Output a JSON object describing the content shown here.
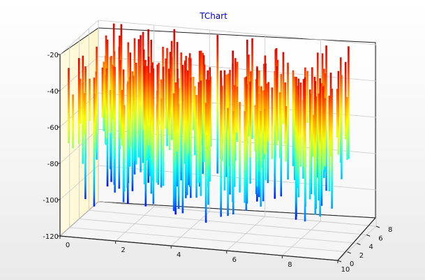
{
  "chart_data": {
    "type": "bar3d",
    "title": "TChart",
    "title_color": "#0000cc",
    "y_axis": {
      "min": -120,
      "max": -20,
      "ticks": [
        -20,
        -40,
        -60,
        -80,
        -100,
        -120
      ],
      "tick_labels": [
        "-20",
        "-40",
        "-60",
        "-80",
        "-100",
        "-120"
      ]
    },
    "x_axis": {
      "min": 0,
      "max": 10,
      "ticks": [
        0,
        2,
        4,
        6,
        8,
        10
      ],
      "tick_labels": [
        "0",
        "2",
        "4",
        "6",
        "8",
        "10"
      ]
    },
    "z_axis": {
      "min": 0,
      "max": 8,
      "ticks": [
        0,
        2,
        4,
        6,
        8
      ],
      "tick_labels": [
        "0",
        "2",
        "4",
        "6",
        "8"
      ]
    },
    "grid": true,
    "colormap": [
      "#0000a0",
      "#0000ff",
      "#00b4ff",
      "#00ffff",
      "#a0ff60",
      "#ffff00",
      "#ff9900",
      "#ff2200",
      "#cc0000"
    ],
    "bar_count": 240,
    "bar_top_range": [
      -45,
      -20
    ],
    "bar_bottom_range": [
      -108,
      -60
    ],
    "random_seed": 7
  }
}
